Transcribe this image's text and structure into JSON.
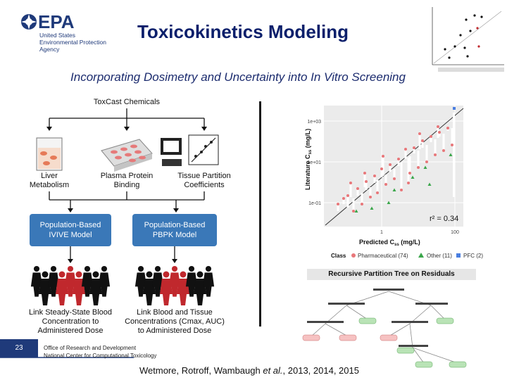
{
  "header": {
    "agency": {
      "wordmark": "EPA",
      "line1": "United States",
      "line2": "Environmental Protection",
      "line3": "Agency"
    },
    "title": "Toxicokinetics Modeling",
    "subtitle": "Incorporating Dosimetry and Uncertainty into In Vitro Screening"
  },
  "workflow": {
    "source": "ToxCast Chemicals",
    "inputs": [
      {
        "line1": "Liver",
        "line2": "Metabolism"
      },
      {
        "line1": "Plasma Protein",
        "line2": "Binding"
      },
      {
        "line1": "Tissue Partition",
        "line2": "Coefficients"
      }
    ],
    "models": [
      {
        "line1": "Population-Based",
        "line2": "IVIVE Model"
      },
      {
        "line1": "Population-Based",
        "line2": "PBPK Model"
      }
    ],
    "outputs": [
      {
        "line1": "Link Steady-State Blood",
        "line2": "Concentration to",
        "line3": "Administered Dose"
      },
      {
        "line1": "Link Blood and Tissue",
        "line2": "Concentrations (Cmax, AUC)",
        "line3": "to Administered Dose"
      }
    ]
  },
  "scatter": {
    "y_label": "Literature C",
    "y_label_sub": "ss",
    "y_unit": "(mg/L)",
    "x_label": "Predicted C",
    "x_label_sub": "ss",
    "x_unit": "(mg/L)",
    "r2": "r² = 0.34",
    "x_ticks": [
      "1",
      "100"
    ],
    "y_ticks": [
      "1e+03",
      "1e+01",
      "1e-01"
    ],
    "legend": {
      "label": "Class",
      "items": [
        "Pharmaceutical (74)",
        "Other (11)",
        "PFC (2)"
      ]
    }
  },
  "tree": {
    "title": "Recursive Partition Tree on Residuals"
  },
  "footer": {
    "page_number": "23",
    "office_line1": "Office of Research and Development",
    "office_line2": "National Center for Computational Toxicology",
    "citation_prefix": "Wetmore, Rotroff, Wambaugh ",
    "citation_etal": "et al.",
    "citation_years": ", 2013, 2014, 2015"
  },
  "colors": {
    "epa_blue": "#1f3a7a",
    "title_navy": "#0b1f6b",
    "model_box": "#3a78b8",
    "pharma_red": "#e8777a",
    "other_green": "#3aa64a",
    "pfc_blue": "#4a7ee0",
    "figure_red": "#c0282d"
  },
  "chart_data": {
    "type": "scatter",
    "xlabel": "Predicted Css (mg/L)",
    "ylabel": "Literature Css (mg/L)",
    "x_ticks": [
      "1",
      "100"
    ],
    "y_ticks": [
      "1e+03",
      "1e+01",
      "1e-01"
    ],
    "series": [
      {
        "name": "Pharmaceutical (74)"
      },
      {
        "name": "Other (11)"
      },
      {
        "name": "PFC (2)"
      }
    ]
  }
}
